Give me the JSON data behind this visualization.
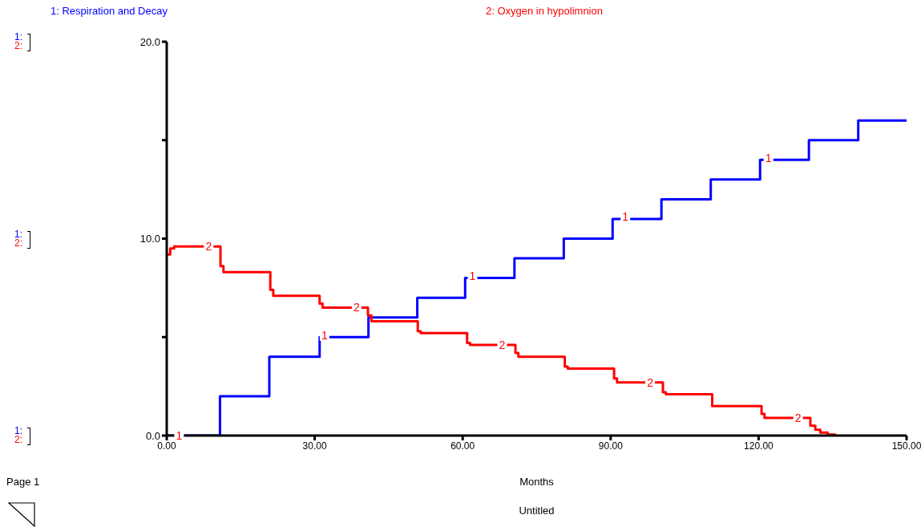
{
  "chart_data": {
    "type": "step",
    "subtitle": "Untitled",
    "xlabel": "Months",
    "legend": "top",
    "marker": "none",
    "grid": false,
    "xlim": [
      0,
      150
    ],
    "xticks": [
      {
        "value": 0,
        "label": "0.00"
      },
      {
        "value": 30,
        "label": "30.00"
      },
      {
        "value": 60,
        "label": "60.00"
      },
      {
        "value": 90,
        "label": "90.00"
      },
      {
        "value": 120,
        "label": "120.00"
      },
      {
        "value": 150,
        "label": "150.00"
      }
    ],
    "ylim": [
      0,
      20
    ],
    "yticks": [
      {
        "value": 0,
        "label": "0.0"
      },
      {
        "value": 5,
        "label": null
      },
      {
        "value": 10,
        "label": "10.0"
      },
      {
        "value": 15,
        "label": null
      },
      {
        "value": 20,
        "label": "20.0"
      }
    ],
    "series": [
      {
        "name": "1: Respiration and Decay",
        "color": "#0000ff",
        "x": [
          0,
          10.8,
          20.8,
          31,
          40.9,
          50.8,
          60.5,
          70.5,
          80.5,
          90.4,
          100.3,
          110.3,
          120.3,
          130.2,
          140.2,
          150
        ],
        "values": [
          0,
          2,
          4,
          5,
          6,
          7,
          8,
          9,
          10,
          11,
          12,
          13,
          14,
          15,
          16,
          16
        ]
      },
      {
        "name": "2: Oxygen in hypolimnion",
        "color": "#ff0000",
        "x": [
          0,
          0.7,
          1.5,
          10.9,
          11.5,
          21,
          21.6,
          31,
          31.6,
          40.8,
          41.5,
          50.9,
          51.5,
          60.9,
          61.5,
          70.7,
          71.3,
          80.7,
          81.3,
          90.7,
          91.3,
          100.6,
          101.2,
          110.6,
          120.6,
          121.2,
          130.5,
          131.5,
          132.5,
          134,
          135.5
        ],
        "values": [
          9.2,
          9.5,
          9.6,
          8.6,
          8.3,
          7.4,
          7.1,
          6.7,
          6.5,
          6.1,
          5.8,
          5.3,
          5.2,
          4.7,
          4.6,
          4.2,
          4,
          3.5,
          3.4,
          2.9,
          2.7,
          2.2,
          2.1,
          1.5,
          1.1,
          0.9,
          0.5,
          0.3,
          0.15,
          0.05,
          0
        ]
      }
    ],
    "annotations": [
      "1:",
      "2:",
      "1:",
      "2:",
      "1:",
      "2:",
      "Page 1",
      {
        "text": "1",
        "x": 2.5,
        "y": 0
      },
      {
        "text": "1",
        "x": 32,
        "y": 5.1
      },
      {
        "text": "1",
        "x": 62,
        "y": 8.1
      },
      {
        "text": "1",
        "x": 93,
        "y": 11.1
      },
      {
        "text": "1",
        "x": 122,
        "y": 14.1
      },
      {
        "text": "2",
        "x": 8.5,
        "y": 9.6
      },
      {
        "text": "2",
        "x": 38.5,
        "y": 6.5
      },
      {
        "text": "2",
        "x": 68,
        "y": 4.6
      },
      {
        "text": "2",
        "x": 98,
        "y": 2.7
      },
      {
        "text": "2",
        "x": 128,
        "y": 0.9
      }
    ]
  }
}
